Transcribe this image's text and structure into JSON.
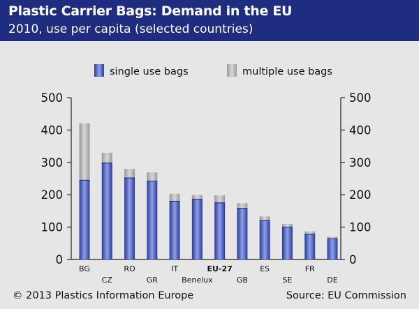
{
  "header": {
    "title": "Plastic Carrier Bags: Demand in the EU",
    "subtitle": "2010, use per capita (selected countries)"
  },
  "footer": {
    "copyright": "© 2013 Plastics Information Europe",
    "source": "Source: EU Commission"
  },
  "colors": {
    "header_bg": "#1e2d80",
    "single_dark": "#2a3a9c",
    "single_light": "#8fa0e6",
    "multiple_dark": "#9a9a9a",
    "multiple_light": "#d8d8d8"
  },
  "chart_data": {
    "type": "bar",
    "stacked": true,
    "categories": [
      "BG",
      "CZ",
      "RO",
      "GR",
      "IT",
      "Benelux",
      "EU-27",
      "GB",
      "ES",
      "SE",
      "FR",
      "DE"
    ],
    "highlight_category": "EU-27",
    "series": [
      {
        "name": "single use bags",
        "values": [
          245,
          298,
          252,
          242,
          180,
          186,
          175,
          158,
          120,
          100,
          78,
          64
        ]
      },
      {
        "name": "multiple use bags",
        "values": [
          176,
          32,
          28,
          27,
          23,
          13,
          23,
          16,
          13,
          10,
          9,
          6
        ]
      }
    ],
    "ylim": [
      0,
      500
    ],
    "yticks": [
      0,
      100,
      200,
      300,
      400,
      500
    ],
    "ytick_labels": [
      "0",
      "100",
      "200",
      "300",
      "400",
      "500"
    ],
    "axes": "left-and-right",
    "legend_position": "top",
    "grid": false
  }
}
